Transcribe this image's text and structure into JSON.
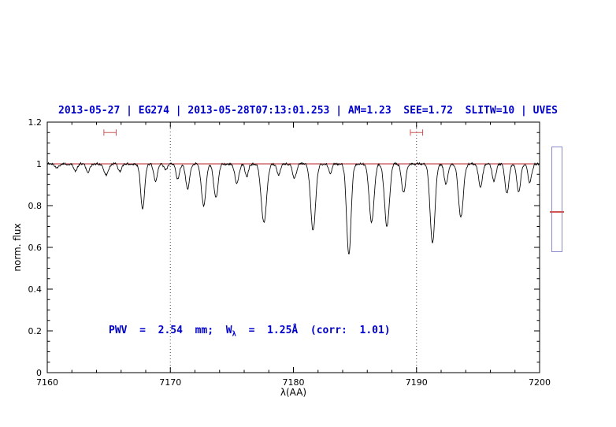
{
  "header": {
    "title": "2013-05-27 | EG274 | 2013-05-28T07:13:01.253 | AM=1.23  SEE=1.72  SLITW=10 | UVES"
  },
  "annotation": {
    "parts": [
      "PWV  =  2.54  mm;  W",
      "λ",
      "  =  1.25Å  (corr:  1.01)"
    ],
    "color": "#0000cc"
  },
  "colors": {
    "title_text": "#0000cc",
    "spectrum_line": "#000000",
    "continuum_line": "#bb2222",
    "range_marker": "#cc5555",
    "gauge_border": "#8a8ad0",
    "gauge_tick": "#cc5555"
  },
  "side_gauge": {
    "tick_fraction": 0.61,
    "border_color": "#8a8ad0",
    "tick_color": "#cc5555"
  },
  "chart_data": {
    "type": "line",
    "title": "2013-05-27 | EG274 | 2013-05-28T07:13:01.253 | AM=1.23  SEE=1.72  SLITW=10 | UVES",
    "xlabel": "λ(AA)",
    "ylabel": "norm. flux",
    "xlim": [
      7160,
      7200
    ],
    "ylim": [
      0,
      1.2
    ],
    "xticks": [
      7160,
      7170,
      7180,
      7190,
      7200
    ],
    "xtick_minor_step": 2,
    "yticks": [
      0,
      0.2,
      0.4,
      0.6,
      0.8,
      1,
      1.2
    ],
    "ytick_labels": [
      "0",
      "0.2",
      "0.4",
      "0.6",
      "0.8",
      "1",
      "1.2"
    ],
    "ytick_minor_step": 0.05,
    "grid": false,
    "line_color": "#000000",
    "continuum": {
      "y": 1.0,
      "color": "#bb2222"
    },
    "dotted_vlines": {
      "x": [
        7170,
        7190
      ],
      "color": "#444444"
    },
    "noise_amplitude": 0.007,
    "series_note": "telluric absorption spectrum: flux = 1 + noise - sum of gaussian lines",
    "absorption_lines": {
      "columns": [
        "center_AA",
        "depth",
        "sigma_AA"
      ],
      "rows": [
        [
          7160.8,
          0.02,
          0.15
        ],
        [
          7162.3,
          0.035,
          0.15
        ],
        [
          7163.3,
          0.04,
          0.15
        ],
        [
          7164.8,
          0.055,
          0.17
        ],
        [
          7165.9,
          0.035,
          0.15
        ],
        [
          7167.75,
          0.215,
          0.16
        ],
        [
          7168.8,
          0.08,
          0.15
        ],
        [
          7169.6,
          0.03,
          0.13
        ],
        [
          7170.6,
          0.07,
          0.15
        ],
        [
          7171.4,
          0.12,
          0.16
        ],
        [
          7172.7,
          0.2,
          0.18
        ],
        [
          7173.7,
          0.165,
          0.18
        ],
        [
          7175.4,
          0.095,
          0.16
        ],
        [
          7176.2,
          0.06,
          0.14
        ],
        [
          7177.6,
          0.28,
          0.22
        ],
        [
          7178.8,
          0.05,
          0.14
        ],
        [
          7180.1,
          0.07,
          0.16
        ],
        [
          7181.6,
          0.32,
          0.2
        ],
        [
          7183.0,
          0.04,
          0.14
        ],
        [
          7184.5,
          0.44,
          0.18
        ],
        [
          7186.35,
          0.28,
          0.2
        ],
        [
          7187.6,
          0.3,
          0.2
        ],
        [
          7188.95,
          0.14,
          0.16
        ],
        [
          7191.3,
          0.38,
          0.2
        ],
        [
          7192.4,
          0.1,
          0.15
        ],
        [
          7193.6,
          0.255,
          0.2
        ],
        [
          7195.2,
          0.11,
          0.16
        ],
        [
          7196.3,
          0.08,
          0.15
        ],
        [
          7197.35,
          0.14,
          0.16
        ],
        [
          7198.3,
          0.13,
          0.16
        ],
        [
          7199.2,
          0.09,
          0.15
        ]
      ]
    },
    "range_markers": {
      "color": "#cc5555",
      "y": 1.15,
      "items": [
        {
          "center": 7165.1,
          "halfwidth": 0.5
        },
        {
          "center": 7190.0,
          "halfwidth": 0.5
        }
      ]
    }
  }
}
